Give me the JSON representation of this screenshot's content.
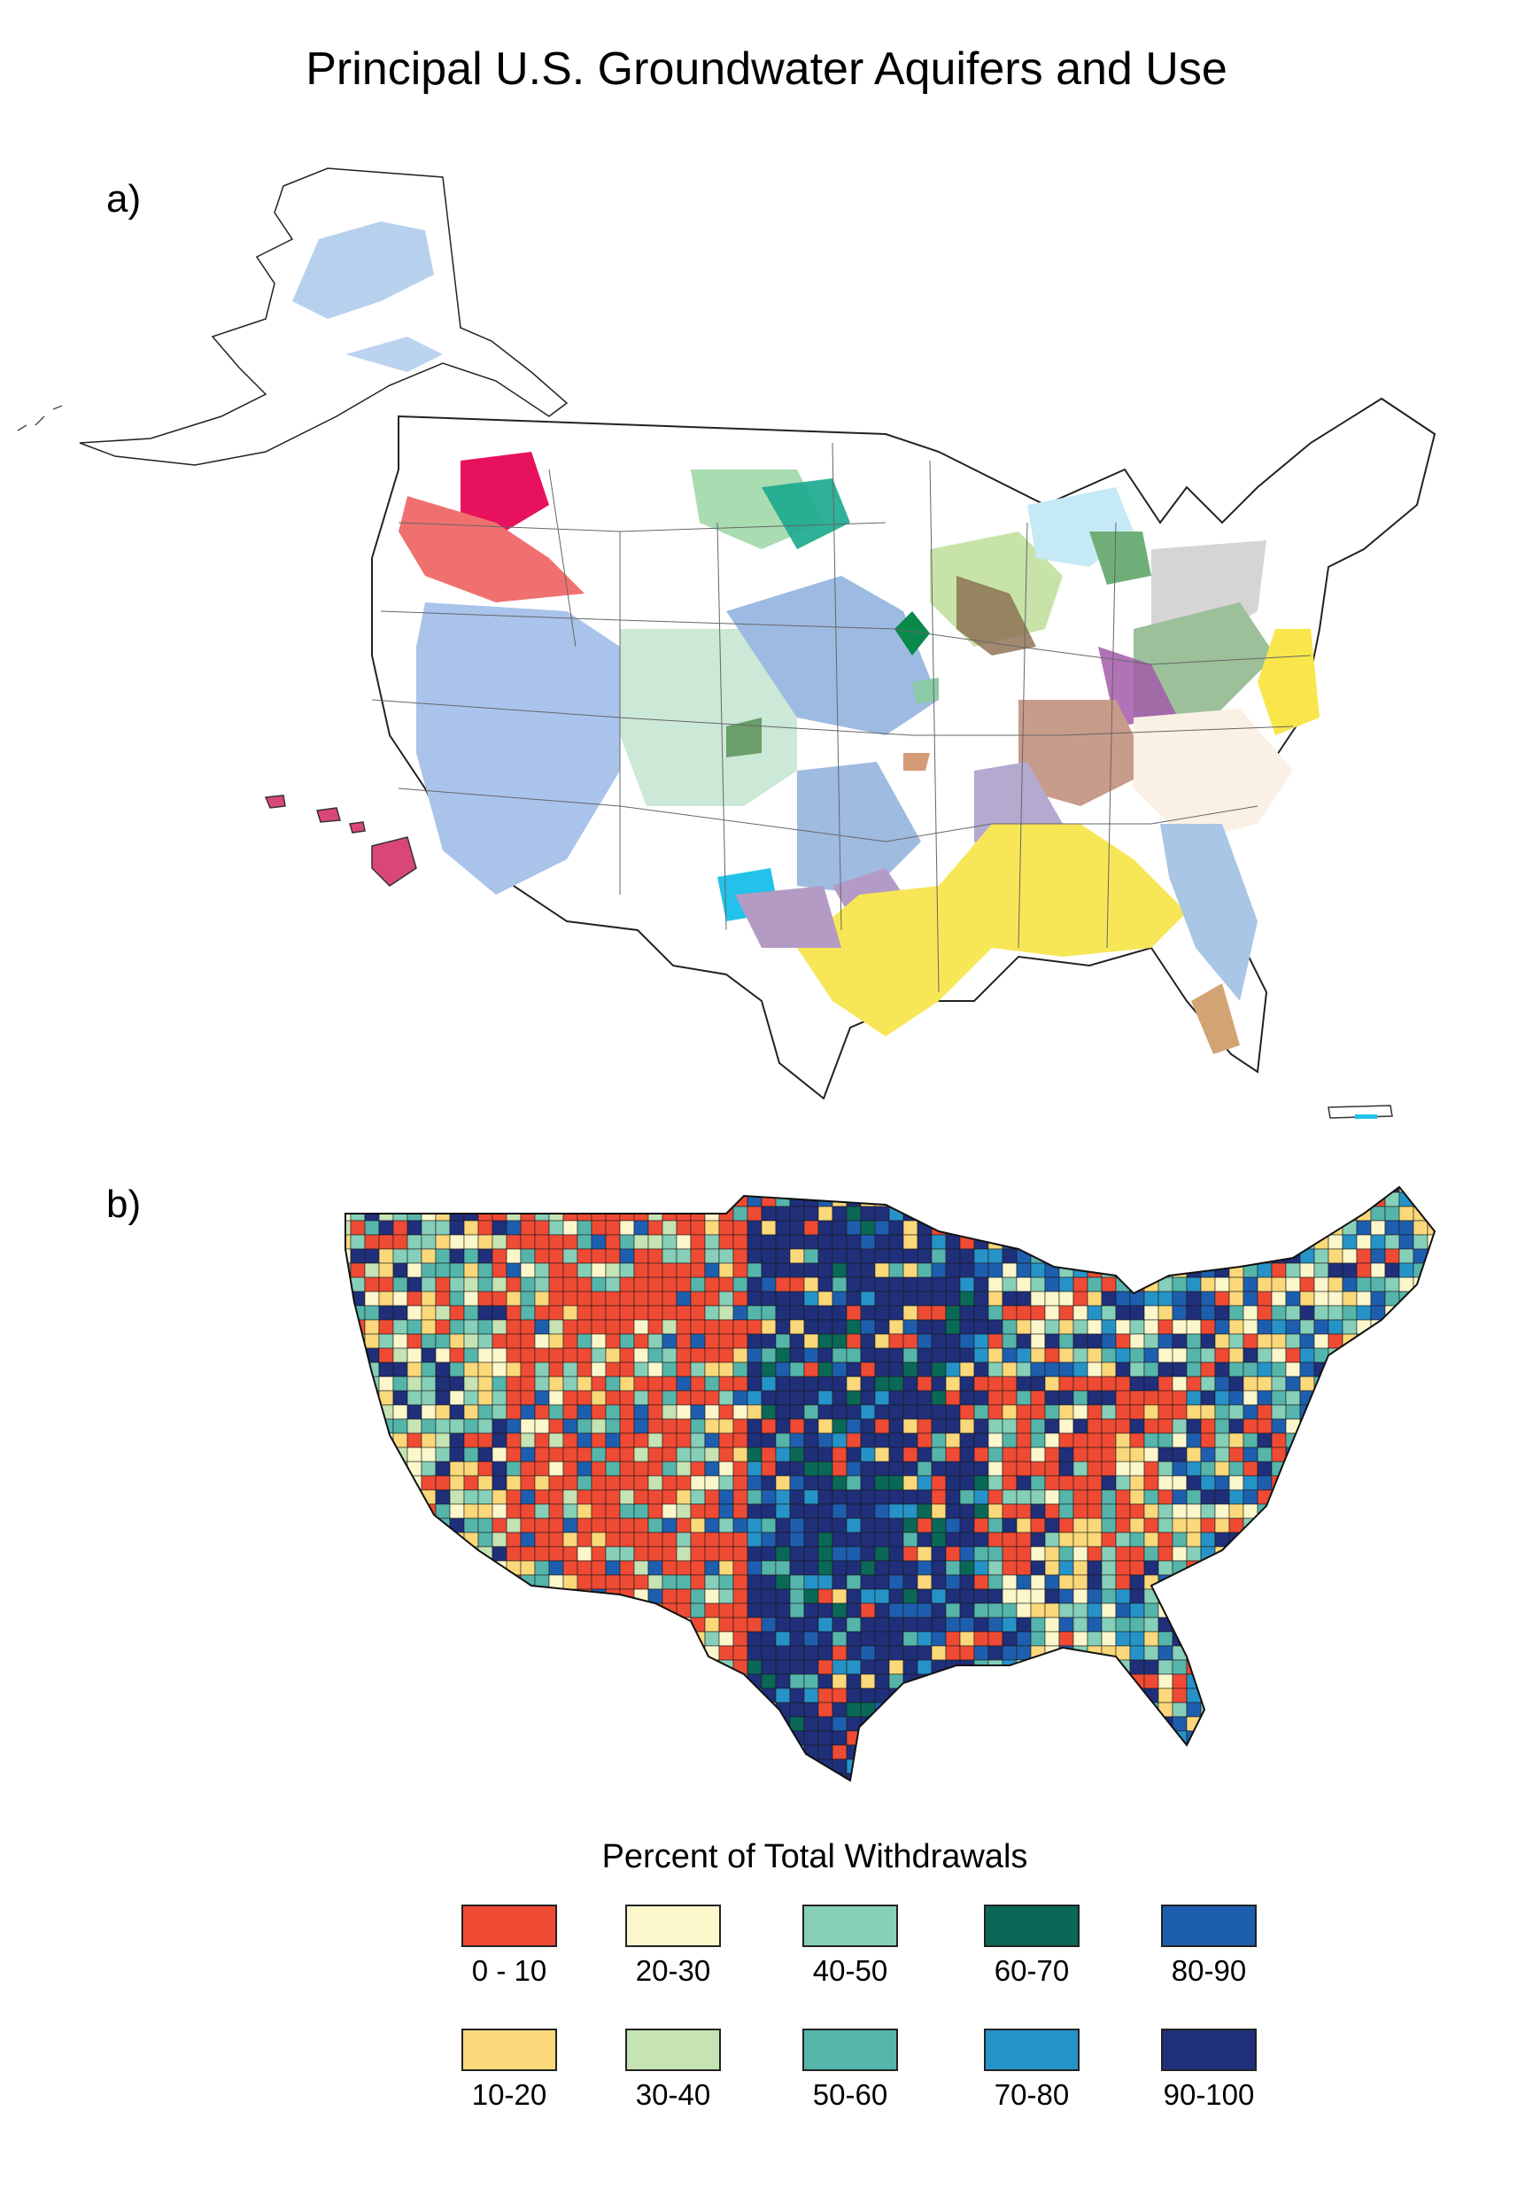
{
  "title": "Principal U.S. Groundwater Aquifers and Use",
  "panels": {
    "a": {
      "label": "a)"
    },
    "b": {
      "label": "b)"
    }
  },
  "legend": {
    "title": "Percent of Total Withdrawals",
    "items": [
      {
        "label": "0 - 10",
        "color": "#ef4a34"
      },
      {
        "label": "20-30",
        "color": "#fbf7cb"
      },
      {
        "label": "40-50",
        "color": "#86cfb9"
      },
      {
        "label": "60-70",
        "color": "#0a6857"
      },
      {
        "label": "80-90",
        "color": "#1e5eae"
      },
      {
        "label": "10-20",
        "color": "#fbd87a"
      },
      {
        "label": "30-40",
        "color": "#c6e3b3"
      },
      {
        "label": "50-60",
        "color": "#55b5ab"
      },
      {
        "label": "70-80",
        "color": "#2693c8"
      },
      {
        "label": "90-100",
        "color": "#1f2f7a"
      }
    ]
  }
}
